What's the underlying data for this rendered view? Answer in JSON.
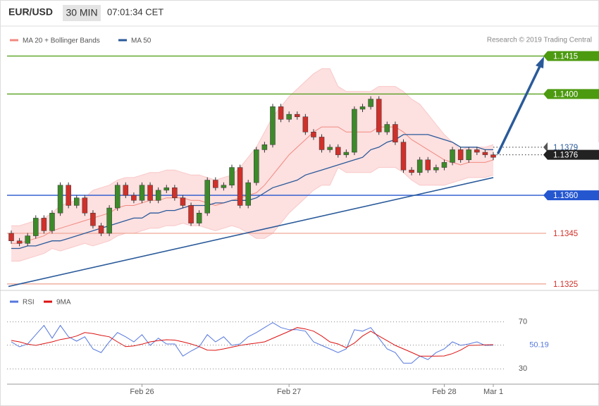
{
  "header": {
    "symbol": "EUR/USD",
    "interval": "30 MIN",
    "time": "07:01:34 CET"
  },
  "chart_data": [
    {
      "type": "candlestick",
      "legend": [
        "MA 20 + Bollinger Bands",
        "MA 50"
      ],
      "credit": "Research © 2019 Trading Central",
      "categories": [
        null,
        null,
        null,
        null,
        null,
        null,
        null,
        null,
        null,
        null,
        null,
        null,
        null,
        null,
        null,
        null,
        "Feb 26",
        null,
        null,
        null,
        null,
        null,
        null,
        null,
        null,
        null,
        null,
        null,
        null,
        null,
        null,
        null,
        null,
        null,
        "Feb 27",
        null,
        null,
        null,
        null,
        null,
        null,
        null,
        null,
        null,
        null,
        null,
        null,
        null,
        null,
        null,
        null,
        null,
        null,
        "Feb 28",
        null,
        null,
        null,
        null,
        null,
        "Mar 1"
      ],
      "open": [
        1.1345,
        1.1342,
        1.1341,
        1.1344,
        1.1351,
        1.1346,
        1.1353,
        1.1364,
        1.1356,
        1.1359,
        1.1353,
        1.1348,
        1.1345,
        1.1355,
        1.1364,
        1.136,
        1.1358,
        1.1364,
        1.1358,
        1.1362,
        1.1363,
        1.1359,
        1.1356,
        1.1349,
        1.1353,
        1.1366,
        1.1363,
        1.1364,
        1.1371,
        1.1356,
        1.1365,
        1.1378,
        1.138,
        1.1395,
        1.139,
        1.1392,
        1.1391,
        1.1385,
        1.1383,
        1.1378,
        1.1379,
        1.1376,
        1.1377,
        1.1394,
        1.1395,
        1.1398,
        1.1385,
        1.1388,
        1.1381,
        1.137,
        1.1369,
        1.1374,
        1.137,
        1.1371,
        1.1373,
        1.1378,
        1.1374,
        1.1378,
        1.1377,
        1.1376
      ],
      "close": [
        1.1342,
        1.1341,
        1.1344,
        1.1351,
        1.1346,
        1.1353,
        1.1364,
        1.1356,
        1.1359,
        1.1353,
        1.1348,
        1.1345,
        1.1355,
        1.1364,
        1.136,
        1.1358,
        1.1364,
        1.1358,
        1.1362,
        1.1363,
        1.1359,
        1.1356,
        1.1349,
        1.1353,
        1.1366,
        1.1363,
        1.1364,
        1.1371,
        1.1356,
        1.1365,
        1.1378,
        1.138,
        1.1395,
        1.139,
        1.1392,
        1.1391,
        1.1385,
        1.1383,
        1.1378,
        1.1379,
        1.1376,
        1.1377,
        1.1394,
        1.1395,
        1.1398,
        1.1385,
        1.1388,
        1.1381,
        1.137,
        1.1369,
        1.1374,
        1.137,
        1.1371,
        1.1373,
        1.1378,
        1.1374,
        1.1378,
        1.1377,
        1.1376,
        1.1375
      ],
      "up_color": "#3d8a2a",
      "down_color": "#d0302a",
      "series": [
        {
          "name": "MA 20 + Bollinger Bands",
          "color": "#f08a80",
          "values": [
            1.1341,
            1.1341,
            1.1342,
            1.1343,
            1.1344,
            1.1346,
            1.1347,
            1.1348,
            1.1349,
            1.135,
            1.1351,
            1.1352,
            1.1353,
            1.1355,
            1.1356,
            1.1356,
            1.1357,
            1.1358,
            1.1358,
            1.1359,
            1.1359,
            1.1359,
            1.1358,
            1.1358,
            1.1357,
            1.1356,
            1.1357,
            1.1358,
            1.1359,
            1.136,
            1.1361,
            1.1364,
            1.1368,
            1.1372,
            1.1376,
            1.1379,
            1.1382,
            1.1385,
            1.1387,
            1.1387,
            1.1387,
            1.1385,
            1.1385,
            1.1385,
            1.1385,
            1.1387,
            1.1387,
            1.1387,
            1.1385,
            1.1382,
            1.138,
            1.1378,
            1.1376,
            1.1374,
            1.1373,
            1.1372,
            1.1373,
            1.1373,
            1.1373,
            1.1374
          ]
        },
        {
          "name": "MA 50",
          "color": "#2a5a9a",
          "values": [
            1.1339,
            1.1339,
            1.134,
            1.134,
            1.1341,
            1.1342,
            1.1342,
            1.1343,
            1.1344,
            1.1345,
            1.1346,
            1.1347,
            1.1348,
            1.1349,
            1.135,
            1.1351,
            1.1351,
            1.1353,
            1.1353,
            1.1354,
            1.1354,
            1.1355,
            1.1356,
            1.1356,
            1.1356,
            1.1357,
            1.1357,
            1.1358,
            1.1358,
            1.1358,
            1.1359,
            1.1361,
            1.1363,
            1.1364,
            1.1365,
            1.1366,
            1.1368,
            1.1369,
            1.137,
            1.1371,
            1.1372,
            1.1373,
            1.1374,
            1.1375,
            1.1378,
            1.1379,
            1.1381,
            1.1382,
            1.1384,
            1.1384,
            1.1384,
            1.1384,
            1.1383,
            1.1382,
            1.1381,
            1.1379,
            1.1379,
            1.1379,
            1.1378,
            1.1378
          ]
        }
      ],
      "bollinger": {
        "color": "#fde0e0",
        "upper": [
          1.1348,
          1.1348,
          1.1349,
          1.135,
          1.1351,
          1.1353,
          1.1356,
          1.1357,
          1.1358,
          1.1359,
          1.1362,
          1.1363,
          1.1364,
          1.1366,
          1.1367,
          1.1367,
          1.1368,
          1.1369,
          1.1369,
          1.137,
          1.137,
          1.1369,
          1.1368,
          1.1368,
          1.1367,
          1.1366,
          1.1367,
          1.1368,
          1.1371,
          1.1375,
          1.1379,
          1.1385,
          1.1391,
          1.1395,
          1.1399,
          1.1402,
          1.1405,
          1.1408,
          1.141,
          1.141,
          1.1403,
          1.1401,
          1.1401,
          1.1401,
          1.1401,
          1.1403,
          1.1403,
          1.1403,
          1.1401,
          1.1398,
          1.1396,
          1.1392,
          1.1388,
          1.1384,
          1.1381,
          1.1378,
          1.1379,
          1.1379,
          1.1379,
          1.138
        ],
        "lower": [
          1.1334,
          1.1334,
          1.1335,
          1.1336,
          1.1337,
          1.1339,
          1.1338,
          1.1339,
          1.134,
          1.1341,
          1.134,
          1.1341,
          1.1342,
          1.1344,
          1.1345,
          1.1345,
          1.1346,
          1.1347,
          1.1347,
          1.1348,
          1.1348,
          1.1349,
          1.1348,
          1.1348,
          1.1347,
          1.1346,
          1.1347,
          1.1348,
          1.1347,
          1.1345,
          1.1343,
          1.1343,
          1.1345,
          1.1349,
          1.1353,
          1.1356,
          1.1359,
          1.1362,
          1.1364,
          1.1364,
          1.1371,
          1.1369,
          1.1369,
          1.1369,
          1.1369,
          1.1371,
          1.1371,
          1.1371,
          1.1369,
          1.1366,
          1.1364,
          1.1364,
          1.1364,
          1.1364,
          1.1365,
          1.1366,
          1.1367,
          1.1367,
          1.1367,
          1.1368
        ]
      },
      "trend_line": {
        "color": "#2a5a9a",
        "values": [
          1.1324,
          1.1367
        ]
      },
      "levels": [
        {
          "value": 1.1415,
          "color": "#4c9a10",
          "style": "solid",
          "label_fill": "#4c9a10",
          "label_color": "#ffffff"
        },
        {
          "value": 1.14,
          "label": "1.1400",
          "color": "#4c9a10",
          "style": "solid",
          "label_fill": "#4c9a10",
          "label_color": "#ffffff"
        },
        {
          "value": 1.1379,
          "color": "#333333",
          "style": "dotted",
          "label_fill": "#ffffff",
          "label_color": "#2a5a9a"
        },
        {
          "value": 1.1376,
          "color": "#333333",
          "style": "dotted",
          "label_fill": "#222222",
          "label_color": "#ffffff"
        },
        {
          "value": 1.136,
          "label": "1.1360",
          "color": "#2456d0",
          "style": "solid",
          "label_fill": "#2456d0",
          "label_color": "#ffffff"
        },
        {
          "value": 1.1345,
          "color": "#f0a898",
          "style": "solid",
          "label_fill": "none",
          "label_color": "#d0302a"
        },
        {
          "value": 1.1325,
          "color": "#f0a898",
          "style": "solid",
          "label_fill": "none",
          "label_color": "#d0302a"
        }
      ],
      "ylim": [
        1.1323,
        1.1426
      ]
    },
    {
      "type": "line",
      "series": [
        {
          "name": "RSI",
          "color": "#5577dd",
          "values": [
            53.0,
            48.8,
            51.2,
            59.1,
            67.0,
            56.1,
            67.0,
            57.3,
            53.6,
            57.3,
            47.0,
            43.9,
            53.0,
            60.9,
            57.3,
            53.0,
            59.1,
            50.0,
            56.1,
            51.2,
            51.2,
            40.9,
            45.2,
            48.8,
            59.1,
            53.0,
            57.3,
            50.0,
            51.2,
            57.3,
            60.9,
            65.2,
            69.4,
            65.2,
            63.3,
            63.3,
            62.1,
            53.0,
            50.0,
            47.0,
            43.9,
            47.0,
            63.3,
            62.1,
            65.2,
            56.1,
            47.0,
            43.9,
            34.8,
            34.8,
            40.9,
            37.9,
            43.9,
            47.0,
            53.0,
            50.0,
            51.2,
            53.0,
            50.0,
            50.19
          ]
        },
        {
          "name": "9MA",
          "color": "#dd1111",
          "values": [
            54.2,
            53,
            51,
            50,
            51.5,
            53,
            55,
            56.1,
            58,
            60.9,
            60,
            58.5,
            57.3,
            53,
            49,
            49.5,
            51,
            53,
            54,
            54.8,
            54.5,
            53,
            51.2,
            49,
            46,
            45.8,
            47,
            48.5,
            50,
            51,
            52,
            53,
            56,
            59,
            62,
            65.2,
            64,
            62.1,
            58,
            53,
            51.2,
            48,
            52,
            58,
            62.1,
            58,
            54,
            50,
            47,
            44,
            40.9,
            40.9,
            40.9,
            41,
            43,
            46,
            50,
            50.2,
            50.4,
            50.6
          ]
        }
      ],
      "ylim": [
        20,
        80
      ],
      "yticks": [
        30,
        70
      ],
      "grid": true
    }
  ]
}
